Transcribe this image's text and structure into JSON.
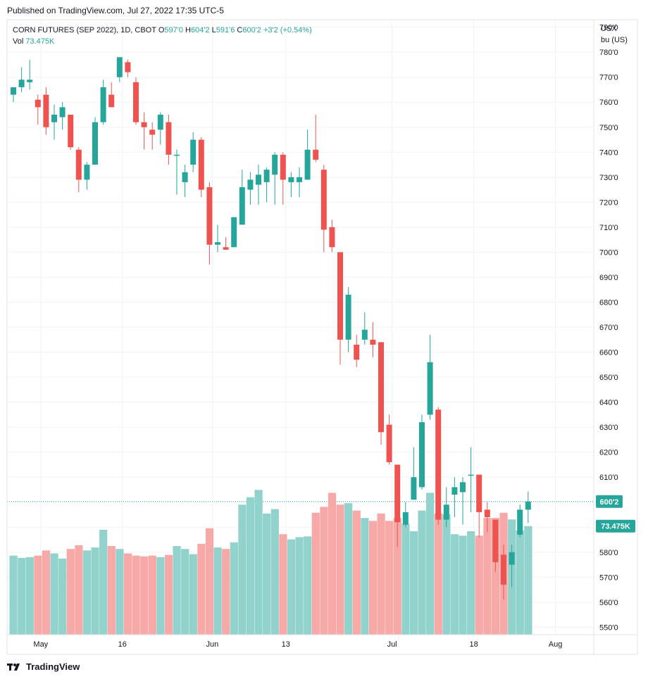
{
  "header": {
    "published": "Published on TradingView.com, Jul 27, 2022 17:35 UTC-5"
  },
  "legend": {
    "symbol": "CORN FUTURES (SEP 2022), 1D, CBOT",
    "o_label": "O",
    "o_value": "597'0",
    "h_label": "H",
    "h_value": "604'2",
    "l_label": "L",
    "l_value": "591'6",
    "c_label": "C",
    "c_value": "600'2",
    "change": "+3'2 (+0.54%)",
    "vol_label": "Vol",
    "vol_value": "73.475K"
  },
  "footer": {
    "brand": "TradingView",
    "logo_icon": "tradingview-logo-icon"
  },
  "colors": {
    "up": "#26a69a",
    "down": "#ef5350",
    "up_vol": "#92d2cc",
    "down_vol": "#f7a9a7",
    "grid": "#f0f3fa",
    "text": "#131722"
  },
  "chart_data": {
    "type": "candlestick",
    "currency": "USX",
    "unit": "bu (US)",
    "y_ticks": [
      "790'0",
      "780'0",
      "770'0",
      "760'0",
      "750'0",
      "740'0",
      "730'0",
      "720'0",
      "710'0",
      "700'0",
      "690'0",
      "680'0",
      "670'0",
      "660'0",
      "650'0",
      "640'0",
      "630'0",
      "620'0",
      "610'0",
      "600'0",
      "590'0",
      "580'0",
      "570'0",
      "560'0",
      "550'0"
    ],
    "ylim": [
      547,
      793
    ],
    "x_ticks": [
      {
        "label": "May",
        "index": 3
      },
      {
        "label": "16",
        "index": 13
      },
      {
        "label": "Jun",
        "index": 24
      },
      {
        "label": "13",
        "index": 33
      },
      {
        "label": "Jul",
        "index": 46
      },
      {
        "label": "18",
        "index": 56
      },
      {
        "label": "Aug",
        "index": 66
      }
    ],
    "last_price_label": "600'2",
    "last_price": 600.25,
    "volume_label": "73.475K",
    "candles": [
      {
        "o": 763,
        "h": 766,
        "l": 760,
        "c": 766,
        "v": 53.5
      },
      {
        "o": 766,
        "h": 774,
        "l": 764,
        "c": 769,
        "v": 52
      },
      {
        "o": 768,
        "h": 777,
        "l": 765,
        "c": 769,
        "v": 52.5
      },
      {
        "o": 761,
        "h": 763,
        "l": 751,
        "c": 758,
        "v": 53.5
      },
      {
        "o": 763,
        "h": 766,
        "l": 747,
        "c": 750,
        "v": 57
      },
      {
        "o": 752,
        "h": 759,
        "l": 745,
        "c": 755,
        "v": 55
      },
      {
        "o": 754,
        "h": 760,
        "l": 749,
        "c": 758,
        "v": 51.5
      },
      {
        "o": 755,
        "h": 755,
        "l": 741,
        "c": 742,
        "v": 58
      },
      {
        "o": 741,
        "h": 742,
        "l": 724,
        "c": 729,
        "v": 60.5
      },
      {
        "o": 729,
        "h": 736,
        "l": 725,
        "c": 735,
        "v": 57
      },
      {
        "o": 735,
        "h": 754,
        "l": 735,
        "c": 752,
        "v": 59
      },
      {
        "o": 752,
        "h": 769,
        "l": 751,
        "c": 766,
        "v": 71
      },
      {
        "o": 763,
        "h": 768,
        "l": 758,
        "c": 758,
        "v": 60
      },
      {
        "o": 770,
        "h": 778,
        "l": 768,
        "c": 778,
        "v": 58
      },
      {
        "o": 776,
        "h": 777,
        "l": 770,
        "c": 772,
        "v": 55
      },
      {
        "o": 768,
        "h": 770,
        "l": 751,
        "c": 752,
        "v": 53.5
      },
      {
        "o": 752,
        "h": 756,
        "l": 741,
        "c": 750,
        "v": 53
      },
      {
        "o": 749,
        "h": 752,
        "l": 741,
        "c": 747,
        "v": 53.5
      },
      {
        "o": 749,
        "h": 756,
        "l": 743,
        "c": 755,
        "v": 52.5
      },
      {
        "o": 752,
        "h": 755,
        "l": 735,
        "c": 739,
        "v": 54
      },
      {
        "o": 739,
        "h": 741,
        "l": 723,
        "c": 739,
        "v": 60
      },
      {
        "o": 728,
        "h": 735,
        "l": 722,
        "c": 732,
        "v": 58
      },
      {
        "o": 735,
        "h": 748,
        "l": 732,
        "c": 745,
        "v": 54.5
      },
      {
        "o": 745,
        "h": 746,
        "l": 722,
        "c": 725,
        "v": 61.5
      },
      {
        "o": 726,
        "h": 728,
        "l": 695,
        "c": 703,
        "v": 72
      },
      {
        "o": 703,
        "h": 711,
        "l": 700,
        "c": 704,
        "v": 59
      },
      {
        "o": 702,
        "h": 706,
        "l": 701,
        "c": 701,
        "v": 58
      },
      {
        "o": 702,
        "h": 714,
        "l": 702,
        "c": 714,
        "v": 62.5
      },
      {
        "o": 711,
        "h": 733,
        "l": 711,
        "c": 726,
        "v": 88
      },
      {
        "o": 725,
        "h": 732,
        "l": 719,
        "c": 729,
        "v": 93
      },
      {
        "o": 727,
        "h": 735,
        "l": 719,
        "c": 731,
        "v": 98
      },
      {
        "o": 728,
        "h": 734,
        "l": 720,
        "c": 733,
        "v": 82
      },
      {
        "o": 731,
        "h": 740,
        "l": 719,
        "c": 739,
        "v": 85
      },
      {
        "o": 739,
        "h": 740,
        "l": 719,
        "c": 729,
        "v": 68
      },
      {
        "o": 728,
        "h": 732,
        "l": 722,
        "c": 730,
        "v": 64.5
      },
      {
        "o": 728,
        "h": 734,
        "l": 722,
        "c": 730,
        "v": 66
      },
      {
        "o": 729,
        "h": 749,
        "l": 729,
        "c": 741,
        "v": 66.5
      },
      {
        "o": 741,
        "h": 755,
        "l": 736,
        "c": 737,
        "v": 82.5
      },
      {
        "o": 733,
        "h": 735,
        "l": 700,
        "c": 709,
        "v": 86.5
      },
      {
        "o": 710,
        "h": 713,
        "l": 700,
        "c": 702,
        "v": 96
      },
      {
        "o": 700,
        "h": 700,
        "l": 655,
        "c": 665,
        "v": 88
      },
      {
        "o": 665,
        "h": 686,
        "l": 660,
        "c": 683,
        "v": 89
      },
      {
        "o": 663,
        "h": 667,
        "l": 654,
        "c": 657,
        "v": 84
      },
      {
        "o": 665,
        "h": 676,
        "l": 663,
        "c": 669,
        "v": 79
      },
      {
        "o": 665,
        "h": 672,
        "l": 658,
        "c": 663,
        "v": 77
      },
      {
        "o": 664,
        "h": 664,
        "l": 623,
        "c": 628,
        "v": 82
      },
      {
        "o": 631,
        "h": 635,
        "l": 615,
        "c": 616,
        "v": 77
      },
      {
        "o": 615,
        "h": 615,
        "l": 582,
        "c": 592,
        "v": 79
      },
      {
        "o": 591,
        "h": 600,
        "l": 590,
        "c": 596,
        "v": 75
      },
      {
        "o": 601,
        "h": 622,
        "l": 601,
        "c": 610,
        "v": 70
      },
      {
        "o": 606,
        "h": 635,
        "l": 605,
        "c": 632,
        "v": 84
      },
      {
        "o": 635,
        "h": 667,
        "l": 633,
        "c": 656,
        "v": 96
      },
      {
        "o": 637,
        "h": 638,
        "l": 591,
        "c": 593,
        "v": 82
      },
      {
        "o": 593,
        "h": 606,
        "l": 590,
        "c": 599,
        "v": 81.5
      },
      {
        "o": 603,
        "h": 610,
        "l": 594,
        "c": 606,
        "v": 68
      },
      {
        "o": 604,
        "h": 610,
        "l": 591,
        "c": 608,
        "v": 67
      },
      {
        "o": 611,
        "h": 622,
        "l": 596,
        "c": 611,
        "v": 70
      },
      {
        "o": 611,
        "h": 611,
        "l": 586,
        "c": 596,
        "v": 67
      },
      {
        "o": 597,
        "h": 600,
        "l": 588,
        "c": 594,
        "v": 79
      },
      {
        "o": 593,
        "h": 593,
        "l": 572,
        "c": 576,
        "v": 79
      },
      {
        "o": 579,
        "h": 583,
        "l": 561,
        "c": 567,
        "v": 82.5
      },
      {
        "o": 575,
        "h": 583,
        "l": 566,
        "c": 580,
        "v": 78
      },
      {
        "o": 587,
        "h": 599,
        "l": 586,
        "c": 597,
        "v": 70.5
      },
      {
        "o": 597,
        "h": 604.25,
        "l": 591.75,
        "c": 600.25,
        "v": 73.475
      }
    ]
  }
}
